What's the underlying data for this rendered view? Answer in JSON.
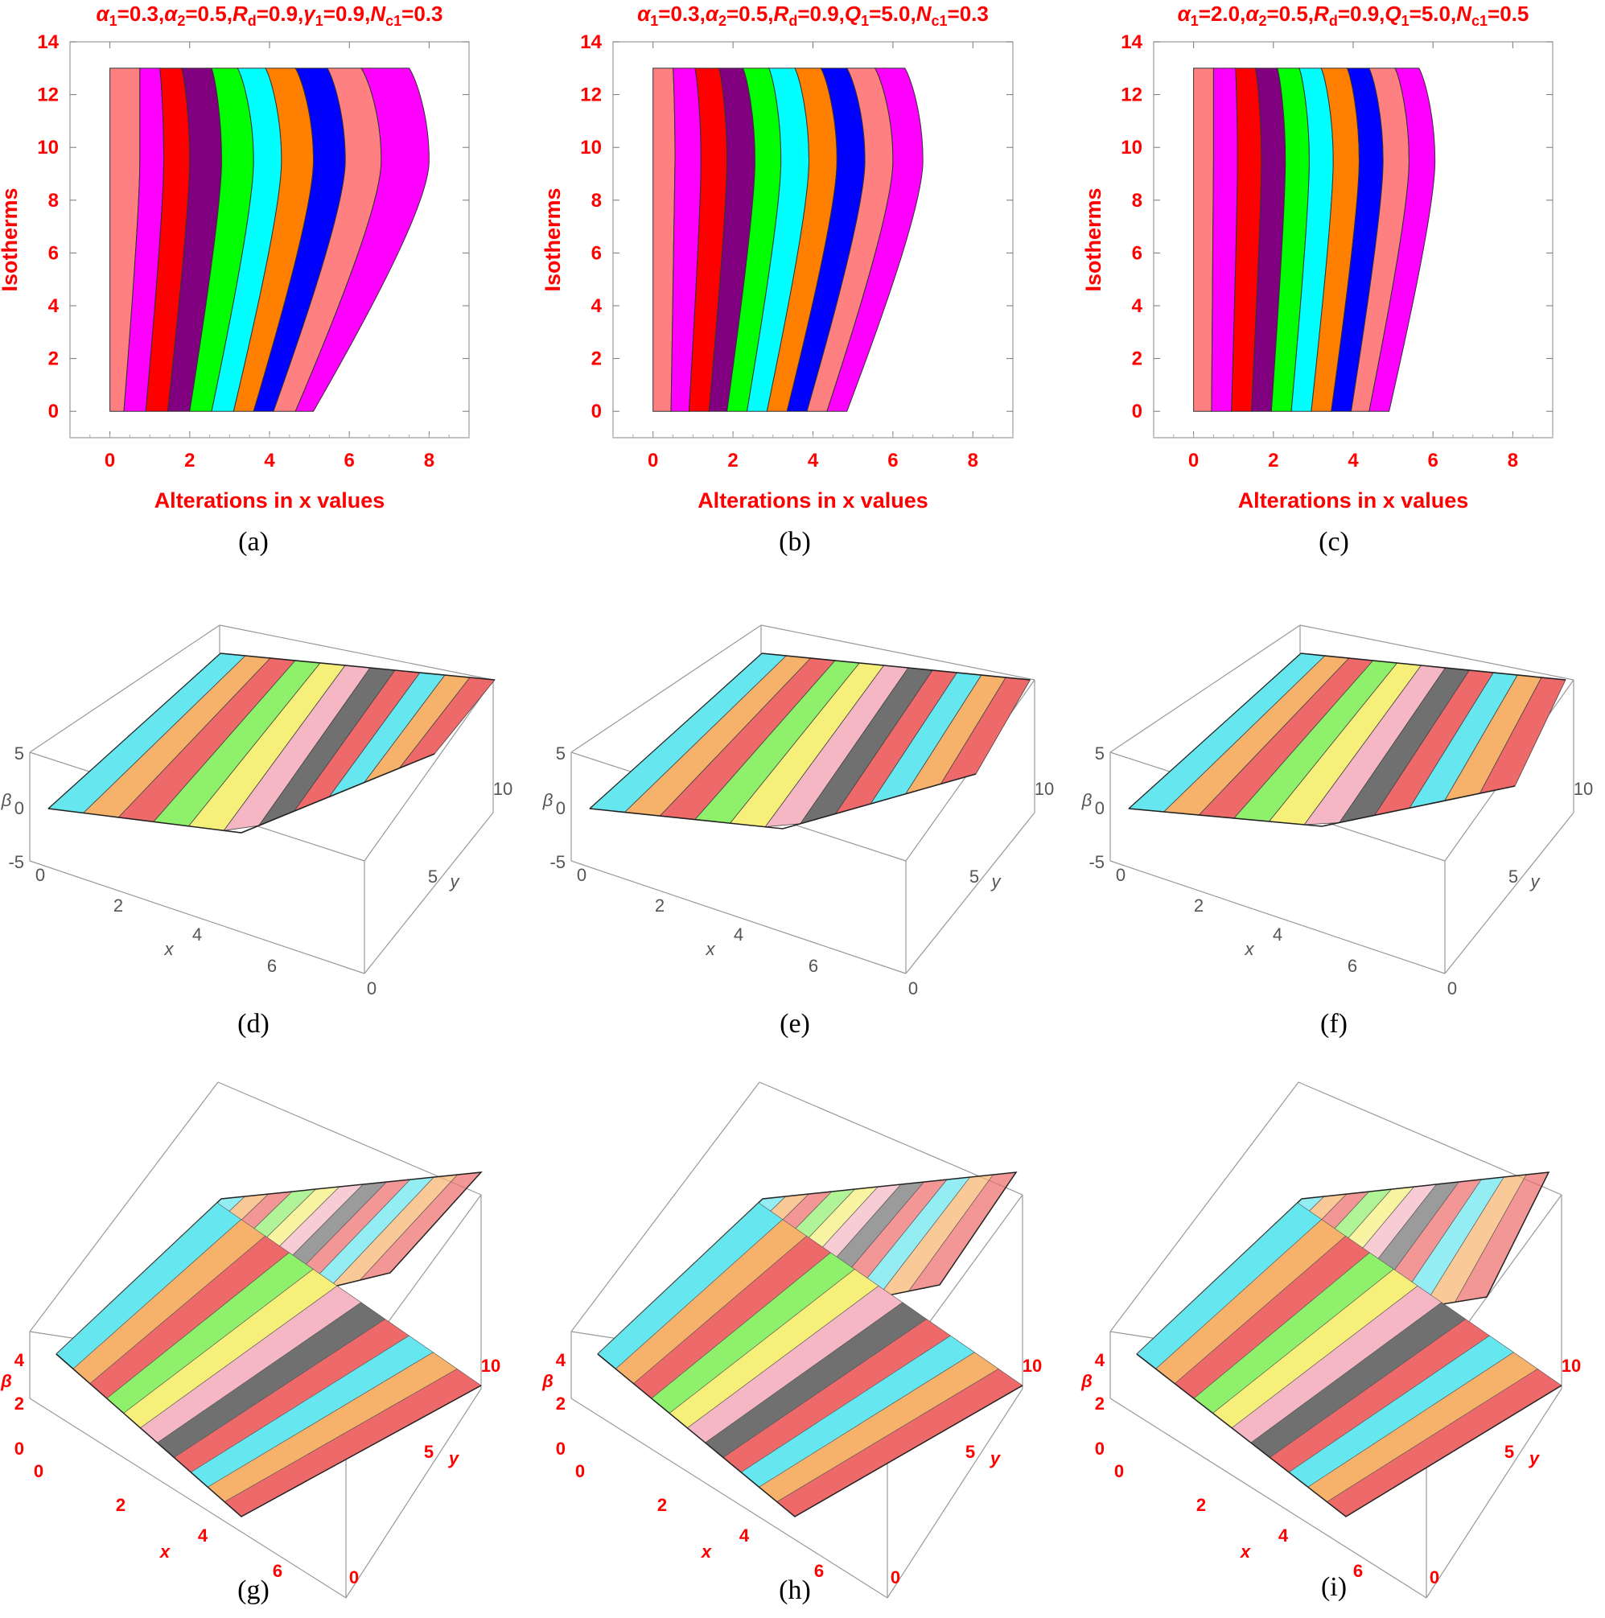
{
  "colors": {
    "accent": "#ff0000",
    "contour_bands": [
      "#ff8080",
      "#ff00ff",
      "#ff0000",
      "#800080",
      "#00ff00",
      "#00ffff",
      "#ff8000",
      "#0000ff",
      "#ff8080",
      "#ff00ff"
    ],
    "surface_bands": [
      "#66e6ee",
      "#f6b26b",
      "#ee6a6a",
      "#8ff06b",
      "#f6f07a",
      "#f4b7c3",
      "#707070",
      "#ee6a6a",
      "#66e6ee",
      "#f6b26b",
      "#ee6a6a"
    ]
  },
  "subfigure_labels": [
    "(a)",
    "(b)",
    "(c)",
    "(d)",
    "(e)",
    "(f)",
    "(g)",
    "(h)",
    "(i)"
  ],
  "chart_data": [
    {
      "type": "contour",
      "panel": "a",
      "title_parts": [
        [
          "α",
          "1",
          "=0.3,"
        ],
        [
          "α",
          "2",
          "=0.5,"
        ],
        [
          "R",
          "d",
          "=0.9,"
        ],
        [
          "γ",
          "1",
          "=0.9,"
        ],
        [
          "N",
          "c1",
          "=0.3"
        ]
      ],
      "xlabel": "Alterations in x values",
      "ylabel": "Isotherms",
      "xlim": [
        -1,
        9
      ],
      "ylim": [
        -1,
        14
      ],
      "xticks": [
        "0",
        "2",
        "4",
        "6",
        "8"
      ],
      "yticks": [
        "0",
        "2",
        "4",
        "6",
        "8",
        "10",
        "12",
        "14"
      ],
      "boundaries": [
        {
          "bottom": 0.35,
          "mid": 0.75,
          "top": 0.75
        },
        {
          "bottom": 0.9,
          "mid": 1.35,
          "top": 1.25
        },
        {
          "bottom": 1.45,
          "mid": 2.0,
          "top": 1.8
        },
        {
          "bottom": 2.0,
          "mid": 2.8,
          "top": 2.55
        },
        {
          "bottom": 2.55,
          "mid": 3.6,
          "top": 3.2
        },
        {
          "bottom": 3.1,
          "mid": 4.3,
          "top": 3.9
        },
        {
          "bottom": 3.6,
          "mid": 5.1,
          "top": 4.65
        },
        {
          "bottom": 4.1,
          "mid": 5.9,
          "top": 5.45
        },
        {
          "bottom": 4.65,
          "mid": 6.8,
          "top": 6.3
        },
        {
          "bottom": 5.1,
          "mid": 8.0,
          "top": 7.5
        }
      ]
    },
    {
      "type": "contour",
      "panel": "b",
      "title_parts": [
        [
          "α",
          "1",
          "=0.3,"
        ],
        [
          "α",
          "2",
          "=0.5,"
        ],
        [
          "R",
          "d",
          "=0.9,"
        ],
        [
          "Q",
          "1",
          "=5.0,"
        ],
        [
          "N",
          "c1",
          "=0.3"
        ]
      ],
      "xlabel": "Alterations in x values",
      "ylabel": "Isotherms",
      "xlim": [
        -1,
        9
      ],
      "ylim": [
        -1,
        14
      ],
      "xticks": [
        "0",
        "2",
        "4",
        "6",
        "8"
      ],
      "yticks": [
        "0",
        "2",
        "4",
        "6",
        "8",
        "10",
        "12",
        "14"
      ],
      "boundaries": [
        {
          "bottom": 0.45,
          "mid": 0.55,
          "top": 0.5
        },
        {
          "bottom": 0.9,
          "mid": 1.2,
          "top": 1.05
        },
        {
          "bottom": 1.4,
          "mid": 1.85,
          "top": 1.65
        },
        {
          "bottom": 1.85,
          "mid": 2.55,
          "top": 2.25
        },
        {
          "bottom": 2.35,
          "mid": 3.2,
          "top": 2.9
        },
        {
          "bottom": 2.85,
          "mid": 3.9,
          "top": 3.55
        },
        {
          "bottom": 3.35,
          "mid": 4.6,
          "top": 4.2
        },
        {
          "bottom": 3.85,
          "mid": 5.3,
          "top": 4.85
        },
        {
          "bottom": 4.35,
          "mid": 6.0,
          "top": 5.55
        },
        {
          "bottom": 4.85,
          "mid": 6.75,
          "top": 6.3
        }
      ]
    },
    {
      "type": "contour",
      "panel": "c",
      "title_parts": [
        [
          "α",
          "1",
          "=2.0,"
        ],
        [
          "α",
          "2",
          "=0.5,"
        ],
        [
          "R",
          "d",
          "=0.9,"
        ],
        [
          "Q",
          "1",
          "=5.0,"
        ],
        [
          "N",
          "c1",
          "=0.5"
        ]
      ],
      "xlabel": "Alterations in x values",
      "ylabel": "Isotherms",
      "xlim": [
        -1,
        9
      ],
      "ylim": [
        -1,
        14
      ],
      "xticks": [
        "0",
        "2",
        "4",
        "6",
        "8"
      ],
      "yticks": [
        "0",
        "2",
        "4",
        "6",
        "8",
        "10",
        "12",
        "14"
      ],
      "boundaries": [
        {
          "bottom": 0.45,
          "mid": 0.5,
          "top": 0.5
        },
        {
          "bottom": 0.95,
          "mid": 1.1,
          "top": 1.05
        },
        {
          "bottom": 1.45,
          "mid": 1.7,
          "top": 1.55
        },
        {
          "bottom": 1.95,
          "mid": 2.3,
          "top": 2.1
        },
        {
          "bottom": 2.45,
          "mid": 2.9,
          "top": 2.65
        },
        {
          "bottom": 2.95,
          "mid": 3.5,
          "top": 3.2
        },
        {
          "bottom": 3.45,
          "mid": 4.15,
          "top": 3.85
        },
        {
          "bottom": 3.95,
          "mid": 4.75,
          "top": 4.4
        },
        {
          "bottom": 4.4,
          "mid": 5.4,
          "top": 5.05
        },
        {
          "bottom": 4.9,
          "mid": 6.05,
          "top": 5.65
        }
      ]
    },
    {
      "type": "surface3d",
      "panel": "d",
      "xlabel": "x",
      "ylabel": "y",
      "zlabel": "β",
      "xticks": [
        "0",
        "2",
        "4",
        "6"
      ],
      "yticks": [
        "0",
        "5",
        "10"
      ],
      "zticks": [
        "5",
        "0",
        "-5"
      ],
      "bands": 11
    },
    {
      "type": "surface3d",
      "panel": "e",
      "xlabel": "x",
      "ylabel": "y",
      "zlabel": "β",
      "xticks": [
        "0",
        "2",
        "4",
        "6"
      ],
      "yticks": [
        "0",
        "5",
        "10"
      ],
      "zticks": [
        "5",
        "0",
        "-5"
      ],
      "bands": 11
    },
    {
      "type": "surface3d",
      "panel": "f",
      "xlabel": "x",
      "ylabel": "y",
      "zlabel": "β",
      "xticks": [
        "0",
        "2",
        "4",
        "6"
      ],
      "yticks": [
        "0",
        "5",
        "10"
      ],
      "zticks": [
        "5",
        "0",
        "-5"
      ],
      "bands": 11
    },
    {
      "type": "surface3d",
      "panel": "g",
      "xlabel": "x",
      "ylabel": "y",
      "zlabel": "β",
      "xticks": [
        "0",
        "2",
        "4",
        "6"
      ],
      "yticks": [
        "0",
        "5",
        "10"
      ],
      "zticks": [
        "4",
        "2",
        "0"
      ],
      "bands": 11
    },
    {
      "type": "surface3d",
      "panel": "h",
      "xlabel": "x",
      "ylabel": "y",
      "zlabel": "β",
      "xticks": [
        "0",
        "2",
        "4",
        "6"
      ],
      "yticks": [
        "0",
        "5",
        "10"
      ],
      "zticks": [
        "4",
        "2",
        "0"
      ],
      "bands": 11
    },
    {
      "type": "surface3d",
      "panel": "i",
      "xlabel": "x",
      "ylabel": "y",
      "zlabel": "β",
      "xticks": [
        "0",
        "2",
        "4",
        "6"
      ],
      "yticks": [
        "0",
        "5",
        "10"
      ],
      "zticks": [
        "4",
        "2",
        "0"
      ],
      "bands": 11
    }
  ]
}
